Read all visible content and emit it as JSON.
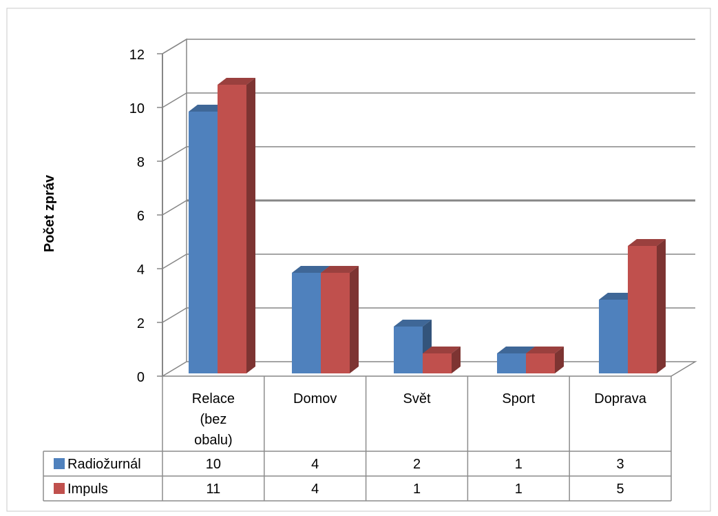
{
  "chart_data": {
    "type": "bar",
    "style": "3d-clustered-column-with-data-table",
    "title": "",
    "xlabel": "",
    "ylabel": "Počet zpráv",
    "ylim": [
      0,
      12
    ],
    "yticks": [
      "0",
      "2",
      "4",
      "6",
      "8",
      "10",
      "12"
    ],
    "grid": true,
    "categories": [
      [
        "Relace",
        "(bez",
        "obalu)"
      ],
      [
        "Domov"
      ],
      [
        "Svět"
      ],
      [
        "Sport"
      ],
      [
        "Doprava"
      ]
    ],
    "series": [
      {
        "name": "Radiožurnál",
        "values": [
          10,
          4,
          2,
          1,
          3
        ],
        "color": "#4F81BD"
      },
      {
        "name": "Impuls",
        "values": [
          11,
          4,
          1,
          1,
          5
        ],
        "color": "#C0504D"
      }
    ],
    "table_values": [
      [
        "10",
        "4",
        "2",
        "1",
        "3"
      ],
      [
        "11",
        "4",
        "1",
        "1",
        "5"
      ]
    ]
  }
}
